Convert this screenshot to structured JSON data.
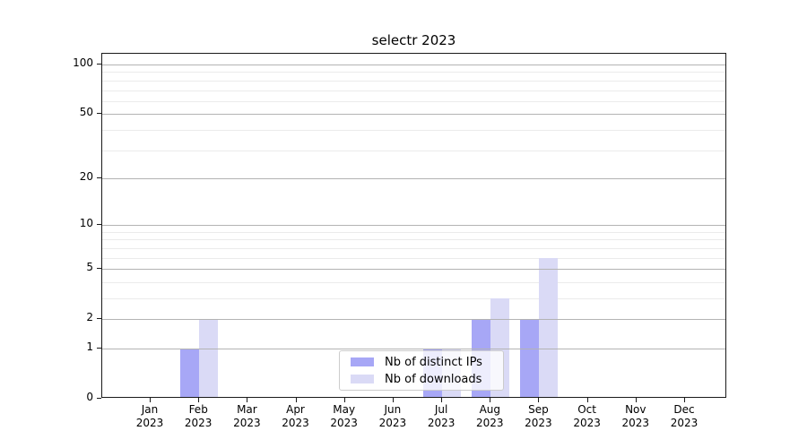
{
  "title": "selectr 2023",
  "chart_data": {
    "type": "bar",
    "title": "selectr 2023",
    "categories": [
      "Jan 2023",
      "Feb 2023",
      "Mar 2023",
      "Apr 2023",
      "May 2023",
      "Jun 2023",
      "Jul 2023",
      "Aug 2023",
      "Sep 2023",
      "Oct 2023",
      "Nov 2023",
      "Dec 2023"
    ],
    "series": [
      {
        "name": "Nb of distinct IPs",
        "key": "distinct-ips",
        "color": "#a7a7f6",
        "values": [
          0,
          1,
          0,
          0,
          0,
          0,
          1,
          2,
          2,
          0,
          0,
          0
        ]
      },
      {
        "name": "Nb of downloads",
        "key": "downloads",
        "color": "#dadaf6",
        "values": [
          0,
          2,
          0,
          0,
          0,
          0,
          1,
          3,
          6,
          0,
          0,
          0
        ]
      }
    ],
    "xlabel": "",
    "ylabel": "",
    "y_scale": "log1p",
    "ylim": [
      0,
      116
    ],
    "y_ticks": [
      0,
      1,
      2,
      5,
      10,
      20,
      50,
      100
    ],
    "y_minor_gridlines": [
      3,
      4,
      6,
      7,
      8,
      9,
      30,
      40,
      60,
      70,
      80,
      90
    ],
    "grid": "on",
    "legend_position": "lower center inside"
  },
  "colors": {
    "distinct_ips_bar": "#a7a7f6",
    "downloads_bar": "#dadaf6",
    "grid_major": "#b3b3b3",
    "grid_minor": "#ebebeb",
    "axis": "#1a1a1a"
  }
}
